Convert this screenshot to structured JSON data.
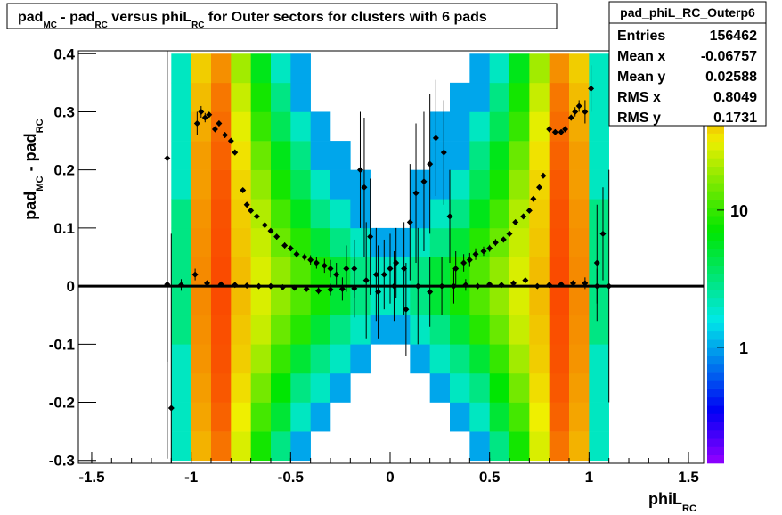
{
  "chart_data": {
    "type": "heatmap",
    "title": [
      "pad",
      "MC",
      " - pad",
      "RC",
      " versus phiL",
      "RC",
      " for Outer sectors for clusters with 6 pads"
    ],
    "x_label": [
      "phiL",
      "RC"
    ],
    "y_label": [
      "pad",
      "MC",
      " - pad",
      "RC"
    ],
    "xlim": [
      -1.567,
      1.576
    ],
    "ylim": [
      -0.305,
      0.405
    ],
    "xticks": [
      -1.5,
      -1,
      -0.5,
      0,
      0.5,
      1,
      1.5
    ],
    "yticks": [
      -0.3,
      -0.2,
      -0.1,
      0,
      0.1,
      0.2,
      0.3,
      0.4
    ],
    "zlim": [
      0.143,
      145
    ],
    "zticks": [
      1,
      10
    ],
    "log_z": true,
    "xbins": [
      -1.1,
      -1.0,
      -0.9,
      -0.8,
      -0.7,
      -0.6,
      -0.5,
      -0.4,
      -0.3,
      -0.2,
      -0.1,
      0,
      0.1,
      0.2,
      0.3,
      0.4,
      0.5,
      0.6,
      0.7,
      0.8,
      0.9,
      1.0,
      1.1
    ],
    "ybins": [
      -0.3,
      -0.25,
      -0.2,
      -0.15,
      -0.1,
      -0.05,
      0,
      0.05,
      0.1,
      0.15,
      0.2,
      0.25,
      0.3,
      0.35,
      0.4
    ],
    "z": [
      [
        2,
        48,
        72,
        28,
        8,
        3,
        1,
        0,
        0,
        0,
        0,
        0,
        0,
        0,
        0,
        1,
        3,
        8,
        28,
        72,
        48,
        2
      ],
      [
        2,
        52,
        80,
        32,
        11,
        5,
        2,
        1,
        0,
        0,
        0,
        0,
        0,
        0,
        1,
        2,
        5,
        11,
        32,
        80,
        52,
        2
      ],
      [
        2,
        55,
        85,
        36,
        15,
        7,
        3,
        2,
        1,
        0,
        0,
        0,
        0,
        1,
        2,
        3,
        7,
        15,
        36,
        85,
        55,
        2
      ],
      [
        2,
        58,
        88,
        40,
        20,
        10,
        5,
        3,
        2,
        1,
        0,
        0,
        1,
        2,
        3,
        5,
        10,
        20,
        40,
        88,
        58,
        2
      ],
      [
        3,
        60,
        90,
        42,
        25,
        14,
        9,
        5,
        3,
        2,
        1,
        1,
        2,
        3,
        5,
        9,
        14,
        25,
        42,
        90,
        60,
        3
      ],
      [
        3,
        62,
        92,
        45,
        28,
        18,
        12,
        8,
        5,
        3,
        2,
        2,
        3,
        5,
        8,
        12,
        18,
        28,
        45,
        92,
        62,
        3
      ],
      [
        3,
        62,
        92,
        45,
        28,
        18,
        12,
        8,
        5,
        3,
        2,
        2,
        3,
        5,
        8,
        12,
        18,
        28,
        45,
        92,
        62,
        3
      ],
      [
        3,
        60,
        90,
        42,
        25,
        14,
        9,
        5,
        3,
        2,
        1,
        1,
        2,
        3,
        5,
        9,
        14,
        25,
        42,
        90,
        60,
        3
      ],
      [
        3,
        58,
        88,
        40,
        22,
        11,
        6,
        3,
        2,
        1,
        0,
        0,
        1,
        2,
        3,
        6,
        11,
        22,
        40,
        88,
        58,
        3
      ],
      [
        2,
        55,
        85,
        38,
        18,
        8,
        4,
        2,
        1,
        1,
        0,
        0,
        1,
        1,
        2,
        4,
        8,
        18,
        38,
        85,
        55,
        2
      ],
      [
        2,
        55,
        80,
        35,
        14,
        6,
        3,
        1,
        1,
        0,
        0,
        0,
        0,
        1,
        1,
        3,
        6,
        14,
        35,
        80,
        55,
        2
      ],
      [
        2,
        50,
        75,
        30,
        10,
        4,
        2,
        1,
        0,
        0,
        0,
        0,
        0,
        1,
        1,
        2,
        4,
        10,
        30,
        75,
        50,
        2
      ],
      [
        2,
        45,
        70,
        25,
        8,
        3,
        1,
        0,
        0,
        0,
        0,
        0,
        0,
        0,
        1,
        1,
        3,
        8,
        25,
        70,
        45,
        2
      ],
      [
        2,
        40,
        60,
        20,
        6,
        2,
        1,
        0,
        0,
        0,
        0,
        0,
        0,
        0,
        0,
        1,
        2,
        6,
        20,
        60,
        40,
        2
      ]
    ],
    "profiles": [
      {
        "x": [
          -1.12,
          -0.97,
          -0.95,
          -0.93,
          -0.91,
          -0.88,
          -0.86,
          -0.83,
          -0.8,
          -0.78,
          -0.74,
          -0.72,
          -0.7,
          -0.67,
          -0.63,
          -0.6,
          -0.57,
          -0.53,
          -0.5,
          -0.47,
          -0.43,
          -0.4,
          -0.37,
          -0.33,
          -0.3,
          -0.27,
          -0.22,
          -0.18,
          -0.15,
          -0.13,
          -0.1,
          -0.07,
          -0.03,
          0,
          0.03,
          0.07,
          0.1,
          0.13,
          0.17,
          0.2,
          0.23,
          0.27,
          0.3,
          0.33,
          0.37,
          0.4,
          0.43,
          0.47,
          0.5,
          0.53,
          0.57,
          0.6,
          0.63,
          0.67,
          0.7,
          0.72,
          0.75,
          0.77,
          0.8,
          0.83,
          0.86,
          0.88,
          0.91,
          0.93,
          0.95,
          0.98,
          1.01,
          1.04,
          1.07
        ],
        "y": [
          0.22,
          0.28,
          0.3,
          0.29,
          0.295,
          0.27,
          0.28,
          0.26,
          0.25,
          0.23,
          0.165,
          0.14,
          0.13,
          0.12,
          0.105,
          0.095,
          0.085,
          0.07,
          0.065,
          0.055,
          0.05,
          0.045,
          0.04,
          0.035,
          0.03,
          0.02,
          0.03,
          0.03,
          0.2,
          0.17,
          0.085,
          0.02,
          0.02,
          0.03,
          0.04,
          0.03,
          0.11,
          0.16,
          0.18,
          0.21,
          0.255,
          0.23,
          0.12,
          0.03,
          0.04,
          0.045,
          0.055,
          0.06,
          0.065,
          0.075,
          0.08,
          0.09,
          0.11,
          0.12,
          0.13,
          0.15,
          0.17,
          0.19,
          0.27,
          0.265,
          0.265,
          0.27,
          0.29,
          0.3,
          0.31,
          0.3,
          0.34,
          0.04,
          0.09
        ],
        "yerr": [
          0.35,
          0.02,
          0.01,
          0.008,
          0.005,
          0.005,
          0.005,
          0.005,
          0.005,
          0.005,
          0.004,
          0.004,
          0.004,
          0.004,
          0.004,
          0.004,
          0.005,
          0.005,
          0.005,
          0.006,
          0.006,
          0.008,
          0.01,
          0.012,
          0.015,
          0.02,
          0.04,
          0.05,
          0.1,
          0.12,
          0.1,
          0.08,
          0.06,
          0.06,
          0.06,
          0.08,
          0.1,
          0.12,
          0.12,
          0.12,
          0.1,
          0.09,
          0.08,
          0.03,
          0.015,
          0.012,
          0.01,
          0.008,
          0.006,
          0.006,
          0.005,
          0.005,
          0.004,
          0.004,
          0.004,
          0.004,
          0.004,
          0.005,
          0.005,
          0.005,
          0.005,
          0.005,
          0.005,
          0.008,
          0.01,
          0.02,
          0.04,
          0.1,
          0.08
        ]
      },
      {
        "x": [
          -1.12,
          -1.1,
          -1.05,
          -0.98,
          -0.92,
          -0.85,
          -0.78,
          -0.72,
          -0.66,
          -0.6,
          -0.54,
          -0.48,
          -0.42,
          -0.36,
          -0.3,
          -0.24,
          -0.18,
          -0.12,
          -0.06,
          0.02,
          0.08,
          0.14,
          0.2,
          0.26,
          0.32,
          0.38,
          0.44,
          0.5,
          0.56,
          0.62,
          0.68,
          0.74,
          0.8,
          0.86,
          0.92,
          0.98,
          1.04,
          1.1
        ],
        "y": [
          0.003,
          -0.21,
          0.002,
          0.02,
          0.005,
          0.003,
          0.002,
          0.001,
          0.0,
          0.0,
          -0.002,
          -0.003,
          -0.005,
          -0.008,
          -0.006,
          -0.005,
          -0.004,
          0.01,
          -0.01,
          0.0,
          -0.04,
          0.0,
          -0.01,
          0.0,
          0.0,
          0.002,
          0.0,
          0.003,
          0.002,
          0.005,
          0.01,
          0.0,
          0.002,
          0.003,
          0.005,
          0.005,
          0.0,
          0.0
        ],
        "yerr": [
          0.3,
          0.3,
          0.01,
          0.01,
          0.003,
          0.002,
          0.002,
          0.002,
          0.002,
          0.002,
          0.002,
          0.003,
          0.004,
          0.006,
          0.01,
          0.02,
          0.05,
          0.1,
          0.08,
          0.06,
          0.08,
          0.1,
          0.06,
          0.05,
          0.03,
          0.01,
          0.005,
          0.003,
          0.003,
          0.002,
          0.002,
          0.002,
          0.002,
          0.002,
          0.003,
          0.01,
          0.03,
          0.2
        ]
      }
    ],
    "hline": 0,
    "stats": {
      "name": "pad_phiL_RC_Outerp6",
      "rows": [
        {
          "label": "Entries",
          "value": 156462
        },
        {
          "label": "Mean x",
          "value": -0.06757
        },
        {
          "label": "Mean y",
          "value": 0.02588
        },
        {
          "label": "RMS x",
          "value": 0.8049
        },
        {
          "label": "RMS y",
          "value": 0.1731
        }
      ]
    }
  }
}
